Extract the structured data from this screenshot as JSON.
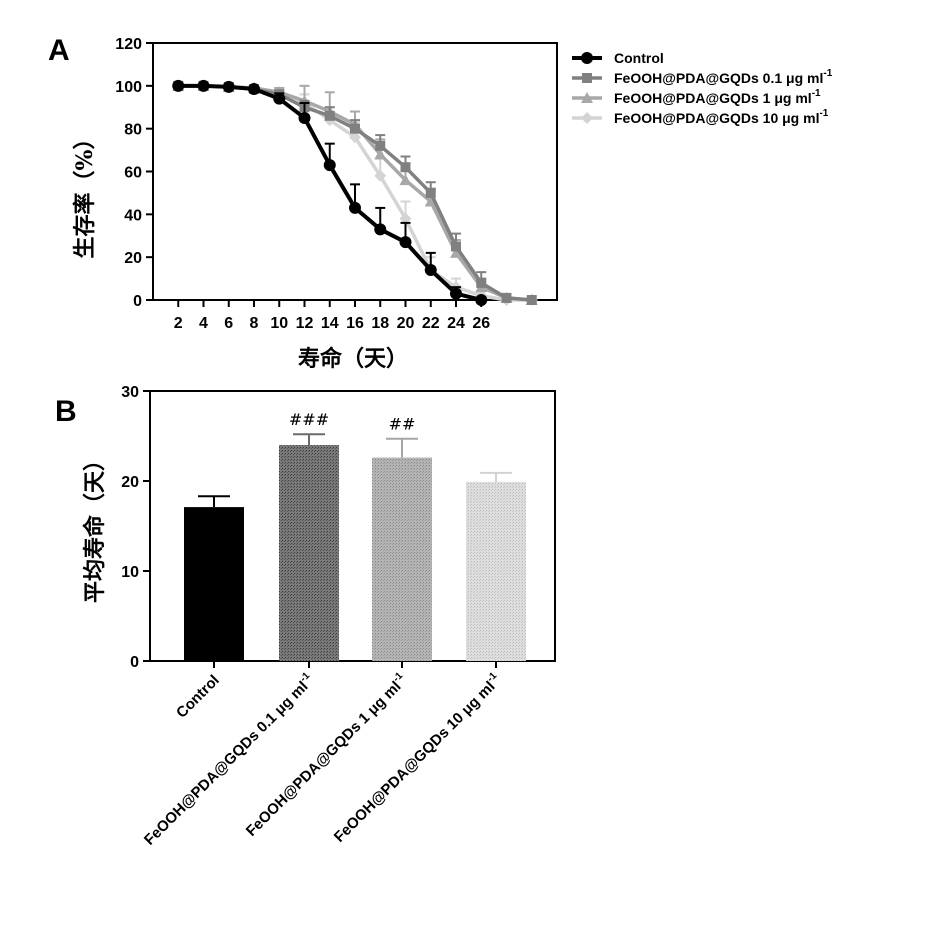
{
  "chart_data": [
    {
      "type": "line",
      "panel_label": "A",
      "xlabel": "寿命（天）",
      "ylabel": "生存率（%）",
      "xlim": [
        0,
        32
      ],
      "ylim": [
        0,
        120
      ],
      "x_ticks": [
        2,
        4,
        6,
        8,
        10,
        12,
        14,
        16,
        18,
        20,
        22,
        24,
        26
      ],
      "y_ticks": [
        0,
        20,
        40,
        60,
        80,
        100,
        120
      ],
      "legend_position": "right",
      "series": [
        {
          "name": "Control",
          "color": "#000000",
          "marker": "circle",
          "x": [
            2,
            4,
            6,
            8,
            10,
            12,
            14,
            16,
            18,
            20,
            22,
            24,
            26
          ],
          "y": [
            100,
            100,
            99.5,
            98.5,
            94,
            85,
            63,
            43,
            33,
            27,
            14,
            3,
            0
          ],
          "err": [
            0,
            0,
            0,
            1,
            2.5,
            7,
            10,
            11,
            10,
            9,
            8,
            3,
            0
          ]
        },
        {
          "name": "FeOOH@PDA@GQDs 0.1 μg ml⁻¹",
          "name_parts": [
            "FeOOH@PDA@GQDs 0.1 μg ml",
            "-1"
          ],
          "color": "#808080",
          "marker": "square",
          "x": [
            2,
            4,
            6,
            8,
            10,
            12,
            14,
            16,
            18,
            20,
            22,
            24,
            26,
            28,
            30
          ],
          "y": [
            100,
            100,
            99.5,
            98.5,
            96,
            90,
            86,
            80,
            72,
            62,
            50,
            25,
            8,
            1,
            0
          ],
          "err": [
            0,
            0,
            0,
            1,
            2,
            3,
            4,
            4,
            5,
            5,
            5,
            6,
            5,
            1,
            0
          ]
        },
        {
          "name": "FeOOH@PDA@GQDs 1 μg ml⁻¹",
          "name_parts": [
            "FeOOH@PDA@GQDs 1 μg ml",
            "-1"
          ],
          "color": "#a8a8a8",
          "marker": "triangle",
          "x": [
            2,
            4,
            6,
            8,
            10,
            12,
            14,
            16,
            18,
            20,
            22,
            24,
            26,
            28,
            30
          ],
          "y": [
            100,
            100,
            99.5,
            99,
            97,
            93,
            88,
            82,
            68,
            56,
            46,
            22,
            6,
            1,
            0
          ],
          "err": [
            0,
            0,
            0,
            1,
            2,
            7,
            9,
            6,
            7,
            5,
            6,
            6,
            4,
            1,
            0
          ]
        },
        {
          "name": "FeOOH@PDA@GQDs 10 μg ml⁻¹",
          "name_parts": [
            "FeOOH@PDA@GQDs 10 μg ml",
            "-1"
          ],
          "color": "#d4d4d4",
          "marker": "diamond",
          "x": [
            2,
            4,
            6,
            8,
            10,
            12,
            14,
            16,
            18,
            20,
            22,
            24,
            26,
            28,
            30
          ],
          "y": [
            100,
            100,
            99.5,
            99,
            97,
            92,
            84,
            76,
            58,
            38,
            14,
            6,
            2,
            0,
            0
          ],
          "err": [
            0,
            0,
            0,
            1,
            2,
            4,
            6,
            7,
            8,
            8,
            6,
            4,
            2,
            0,
            0
          ]
        }
      ]
    },
    {
      "type": "bar",
      "panel_label": "B",
      "xlabel": "",
      "ylabel": "平均寿命（天）",
      "ylim": [
        0,
        30
      ],
      "y_ticks": [
        0,
        10,
        20,
        30
      ],
      "categories": [
        "Control",
        "FeOOH@PDA@GQDs 0.1 μg ml⁻¹",
        "FeOOH@PDA@GQDs 1 μg ml⁻¹",
        "FeOOH@PDA@GQDs 10 μg ml⁻¹"
      ],
      "category_parts": [
        [
          "Control",
          ""
        ],
        [
          "FeOOH@PDA@GQDs 0.1 μg ml",
          "-1"
        ],
        [
          "FeOOH@PDA@GQDs 1 μg ml",
          "-1"
        ],
        [
          "FeOOH@PDA@GQDs 10 μg ml",
          "-1"
        ]
      ],
      "values": [
        17.1,
        24.0,
        22.6,
        19.9
      ],
      "errors": [
        1.2,
        1.2,
        2.1,
        1.0
      ],
      "annotations": [
        "",
        "###",
        "##",
        ""
      ],
      "colors": [
        "#000000",
        "#6a6a6a",
        "#a5a5a5",
        "#d2d2d2"
      ]
    }
  ]
}
